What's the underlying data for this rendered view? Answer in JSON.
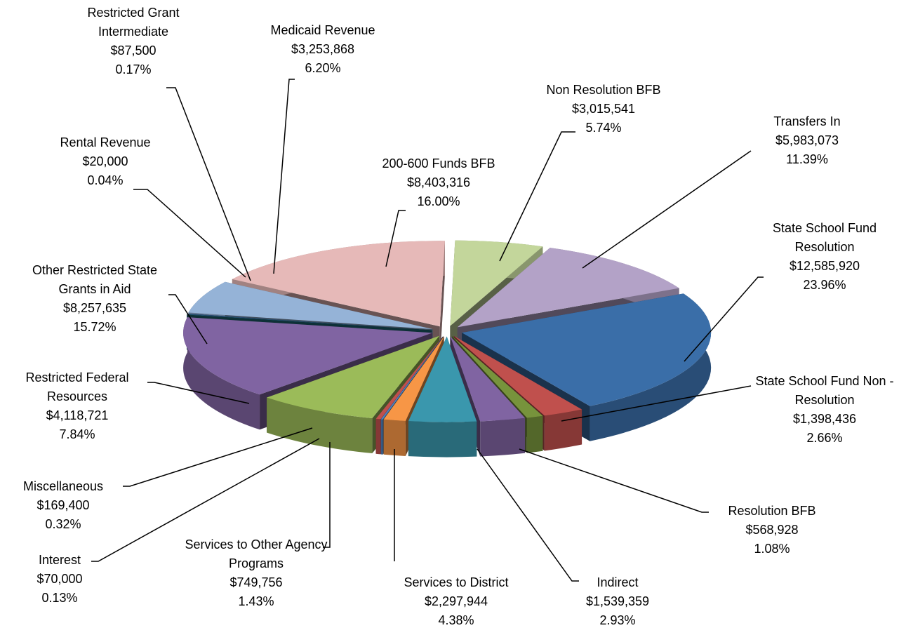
{
  "chart_data": {
    "type": "pie3d",
    "categories": [
      "Non Resolution BFB",
      "Transfers In",
      "State School Fund Resolution",
      "State School Fund Non - Resolution",
      "Resolution BFB",
      "Indirect",
      "Services to District",
      "Services to Other Agency Programs",
      "Interest",
      "Miscellaneous",
      "Restricted Federal Resources",
      "Other Restricted State Grants in Aid",
      "Rental Revenue",
      "Restricted Grant Intermediate",
      "Medicaid Revenue",
      "200-600 Funds BFB"
    ],
    "values": [
      3015541,
      5983073,
      12585920,
      1398436,
      568928,
      1539359,
      2297944,
      749756,
      70000,
      169400,
      4118721,
      8257635,
      20000,
      87500,
      3253868,
      8403316
    ],
    "value_labels": [
      "$3,015,541",
      "$5,983,073",
      "$12,585,920",
      "$1,398,436",
      "$568,928",
      "$1,539,359",
      "$2,297,944",
      "$749,756",
      "$70,000",
      "$169,400",
      "$4,118,721",
      "$8,257,635",
      "$20,000",
      "$87,500",
      "$3,253,868",
      "$8,403,316"
    ],
    "percents": [
      5.74,
      11.39,
      23.96,
      2.66,
      1.08,
      2.93,
      4.38,
      1.43,
      0.13,
      0.32,
      7.84,
      15.72,
      0.04,
      0.17,
      6.2,
      16.0
    ],
    "percent_labels": [
      "5.74%",
      "11.39%",
      "23.96%",
      "2.66%",
      "1.08%",
      "2.93%",
      "4.38%",
      "1.43%",
      "0.13%",
      "0.32%",
      "7.84%",
      "15.72%",
      "0.04%",
      "0.17%",
      "6.20%",
      "16.00%"
    ],
    "colors": [
      "#c3d69b",
      "#b3a2c7",
      "#3a6ea8",
      "#c0504d",
      "#77933c",
      "#8064a2",
      "#3a97ad",
      "#f79646",
      "#4f81bd",
      "#c0504d",
      "#9bbb59",
      "#8064a2",
      "#1f6b7a",
      "#2c4d75",
      "#95b3d7",
      "#e6b9b8"
    ]
  }
}
